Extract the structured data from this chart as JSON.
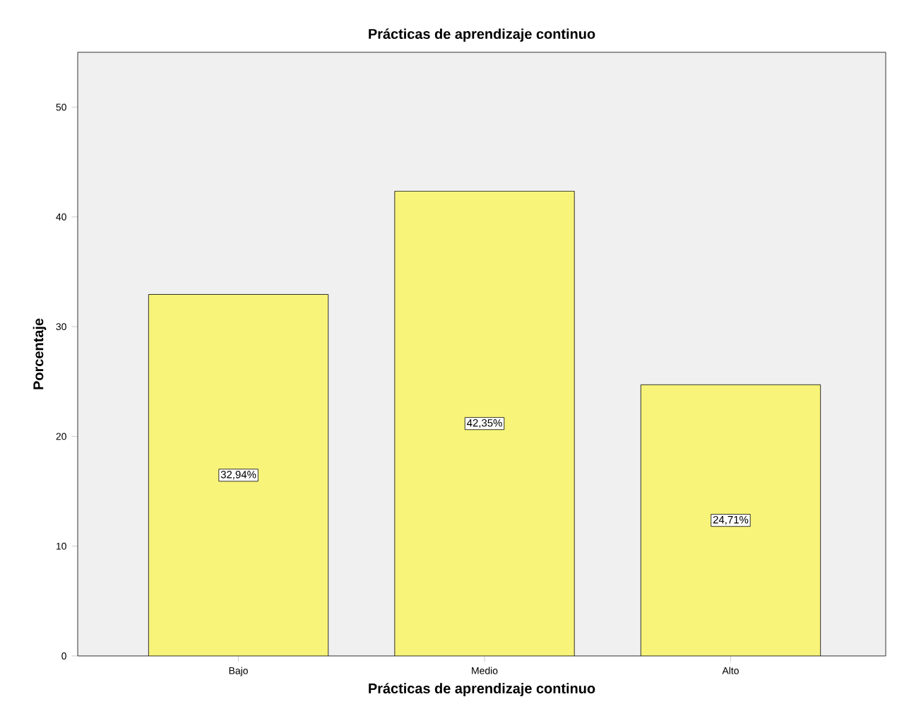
{
  "chart_data": {
    "type": "bar",
    "title": "Prácticas de aprendizaje continuo",
    "xlabel": "Prácticas de aprendizaje continuo",
    "ylabel": "Porcentaje",
    "categories": [
      "Bajo",
      "Medio",
      "Alto"
    ],
    "values": [
      32.94,
      42.35,
      24.71
    ],
    "value_labels": [
      "32,94%",
      "42,35%",
      "24,71%"
    ],
    "color": "#f8f47a",
    "ylim": [
      0,
      55
    ],
    "yticks": [
      0,
      10,
      20,
      30,
      40,
      50
    ]
  }
}
